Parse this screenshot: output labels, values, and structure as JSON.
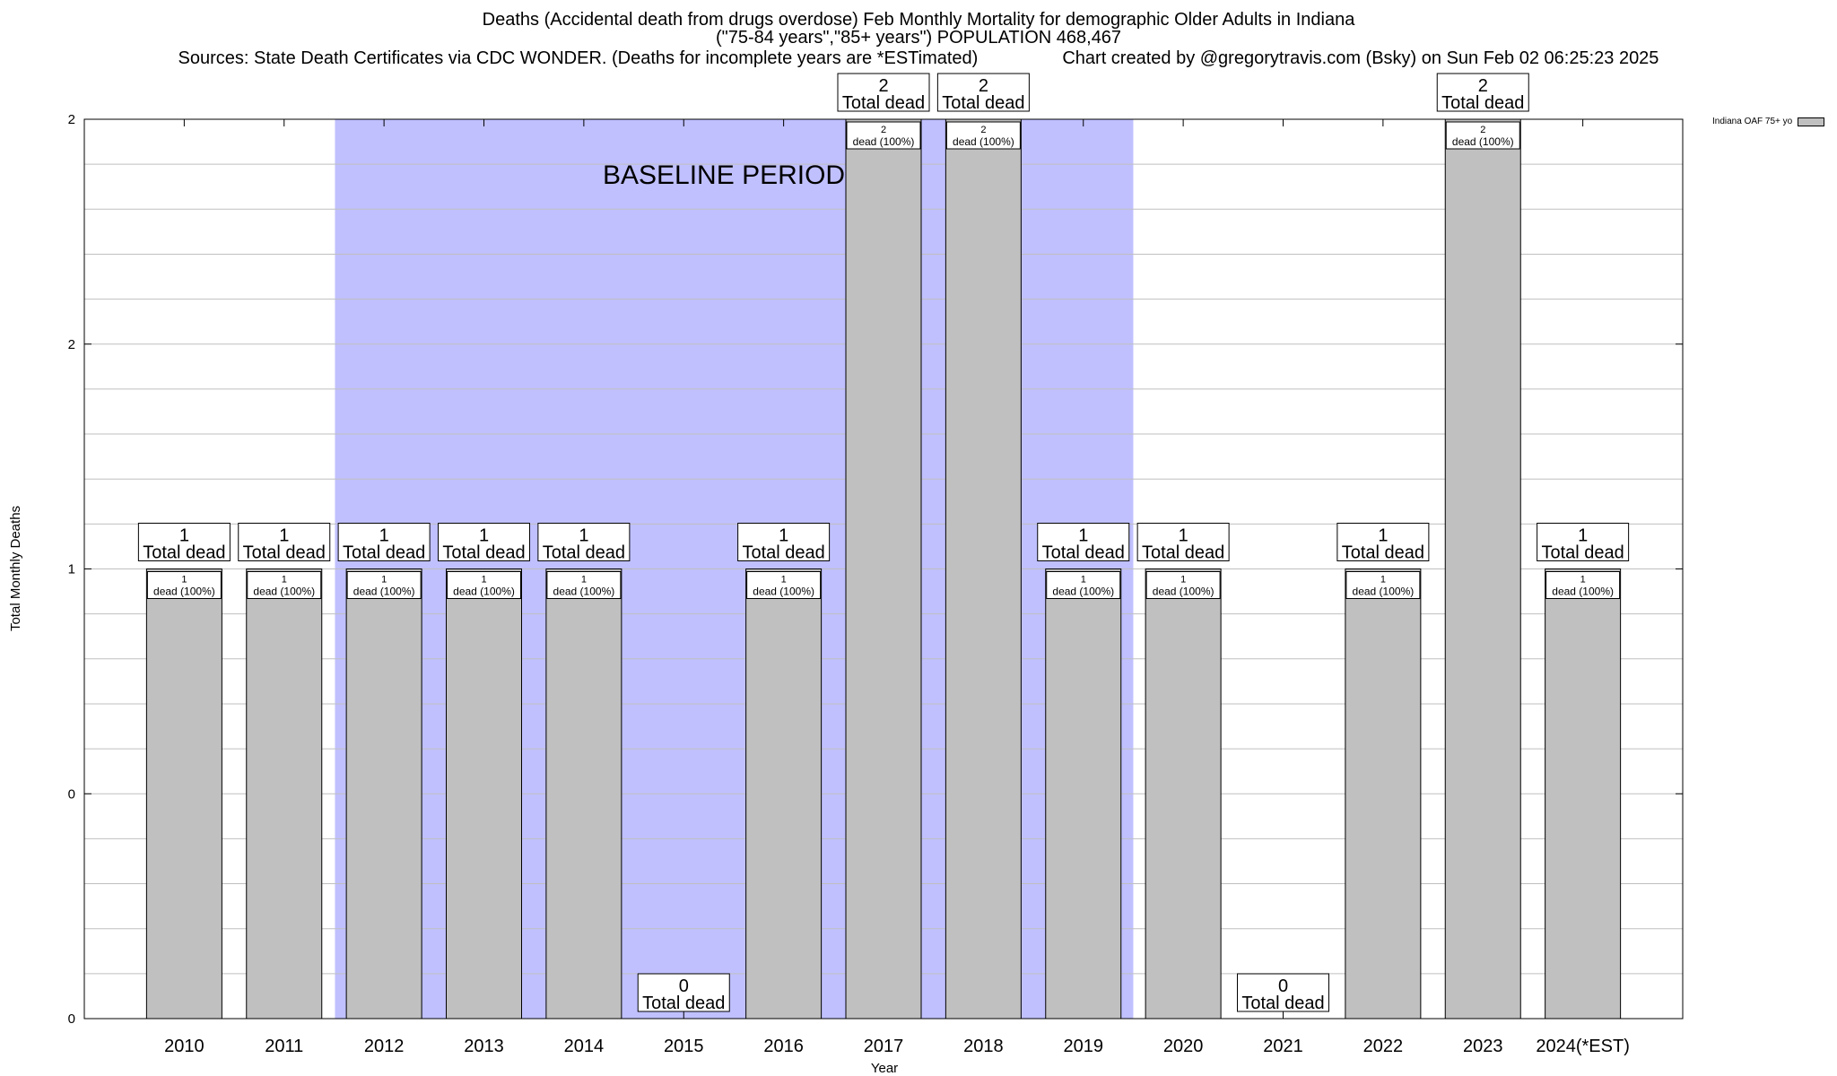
{
  "title": {
    "line1": "Deaths (Accidental death from drugs overdose) Feb Monthly Mortality for demographic Older Adults in Indiana",
    "line2": "(\"75-84 years\",\"85+ years\") POPULATION 468,467",
    "sources": "Sources: State Death Certificates via CDC WONDER. (Deaths for incomplete years are *ESTimated)",
    "credit": "Chart created by @gregorytravis.com (Bsky) on Sun Feb 02 06:25:23 2025"
  },
  "legend": {
    "label": "Indiana OAF 75+ yo"
  },
  "colors": {
    "bar": "#c0c0c0",
    "baseline": "#c0c0ff",
    "grid": "#bfbfbf"
  },
  "chart_data": {
    "type": "bar",
    "xlabel": "Year",
    "ylabel": "Total Monthly Deaths",
    "ylim": [
      0,
      2
    ],
    "y_tick_labels": [
      "0",
      "0",
      "1",
      "2",
      "2"
    ],
    "categories": [
      "2010",
      "2011",
      "2012",
      "2013",
      "2014",
      "2015",
      "2016",
      "2017",
      "2018",
      "2019",
      "2020",
      "2021",
      "2022",
      "2023",
      "2024(*EST)"
    ],
    "series": [
      {
        "name": "Indiana OAF 75+ yo",
        "values": [
          1,
          1,
          1,
          1,
          1,
          0,
          1,
          2,
          2,
          1,
          1,
          0,
          1,
          2,
          1
        ]
      }
    ],
    "total_label_suffix": "Total dead",
    "inner_label_suffix": "dead (100%)",
    "baseline_period": {
      "label": "BASELINE PERIOD",
      "from": "2012",
      "to": "2019"
    },
    "grid": true,
    "legend_position": "top-right, outside plot"
  }
}
